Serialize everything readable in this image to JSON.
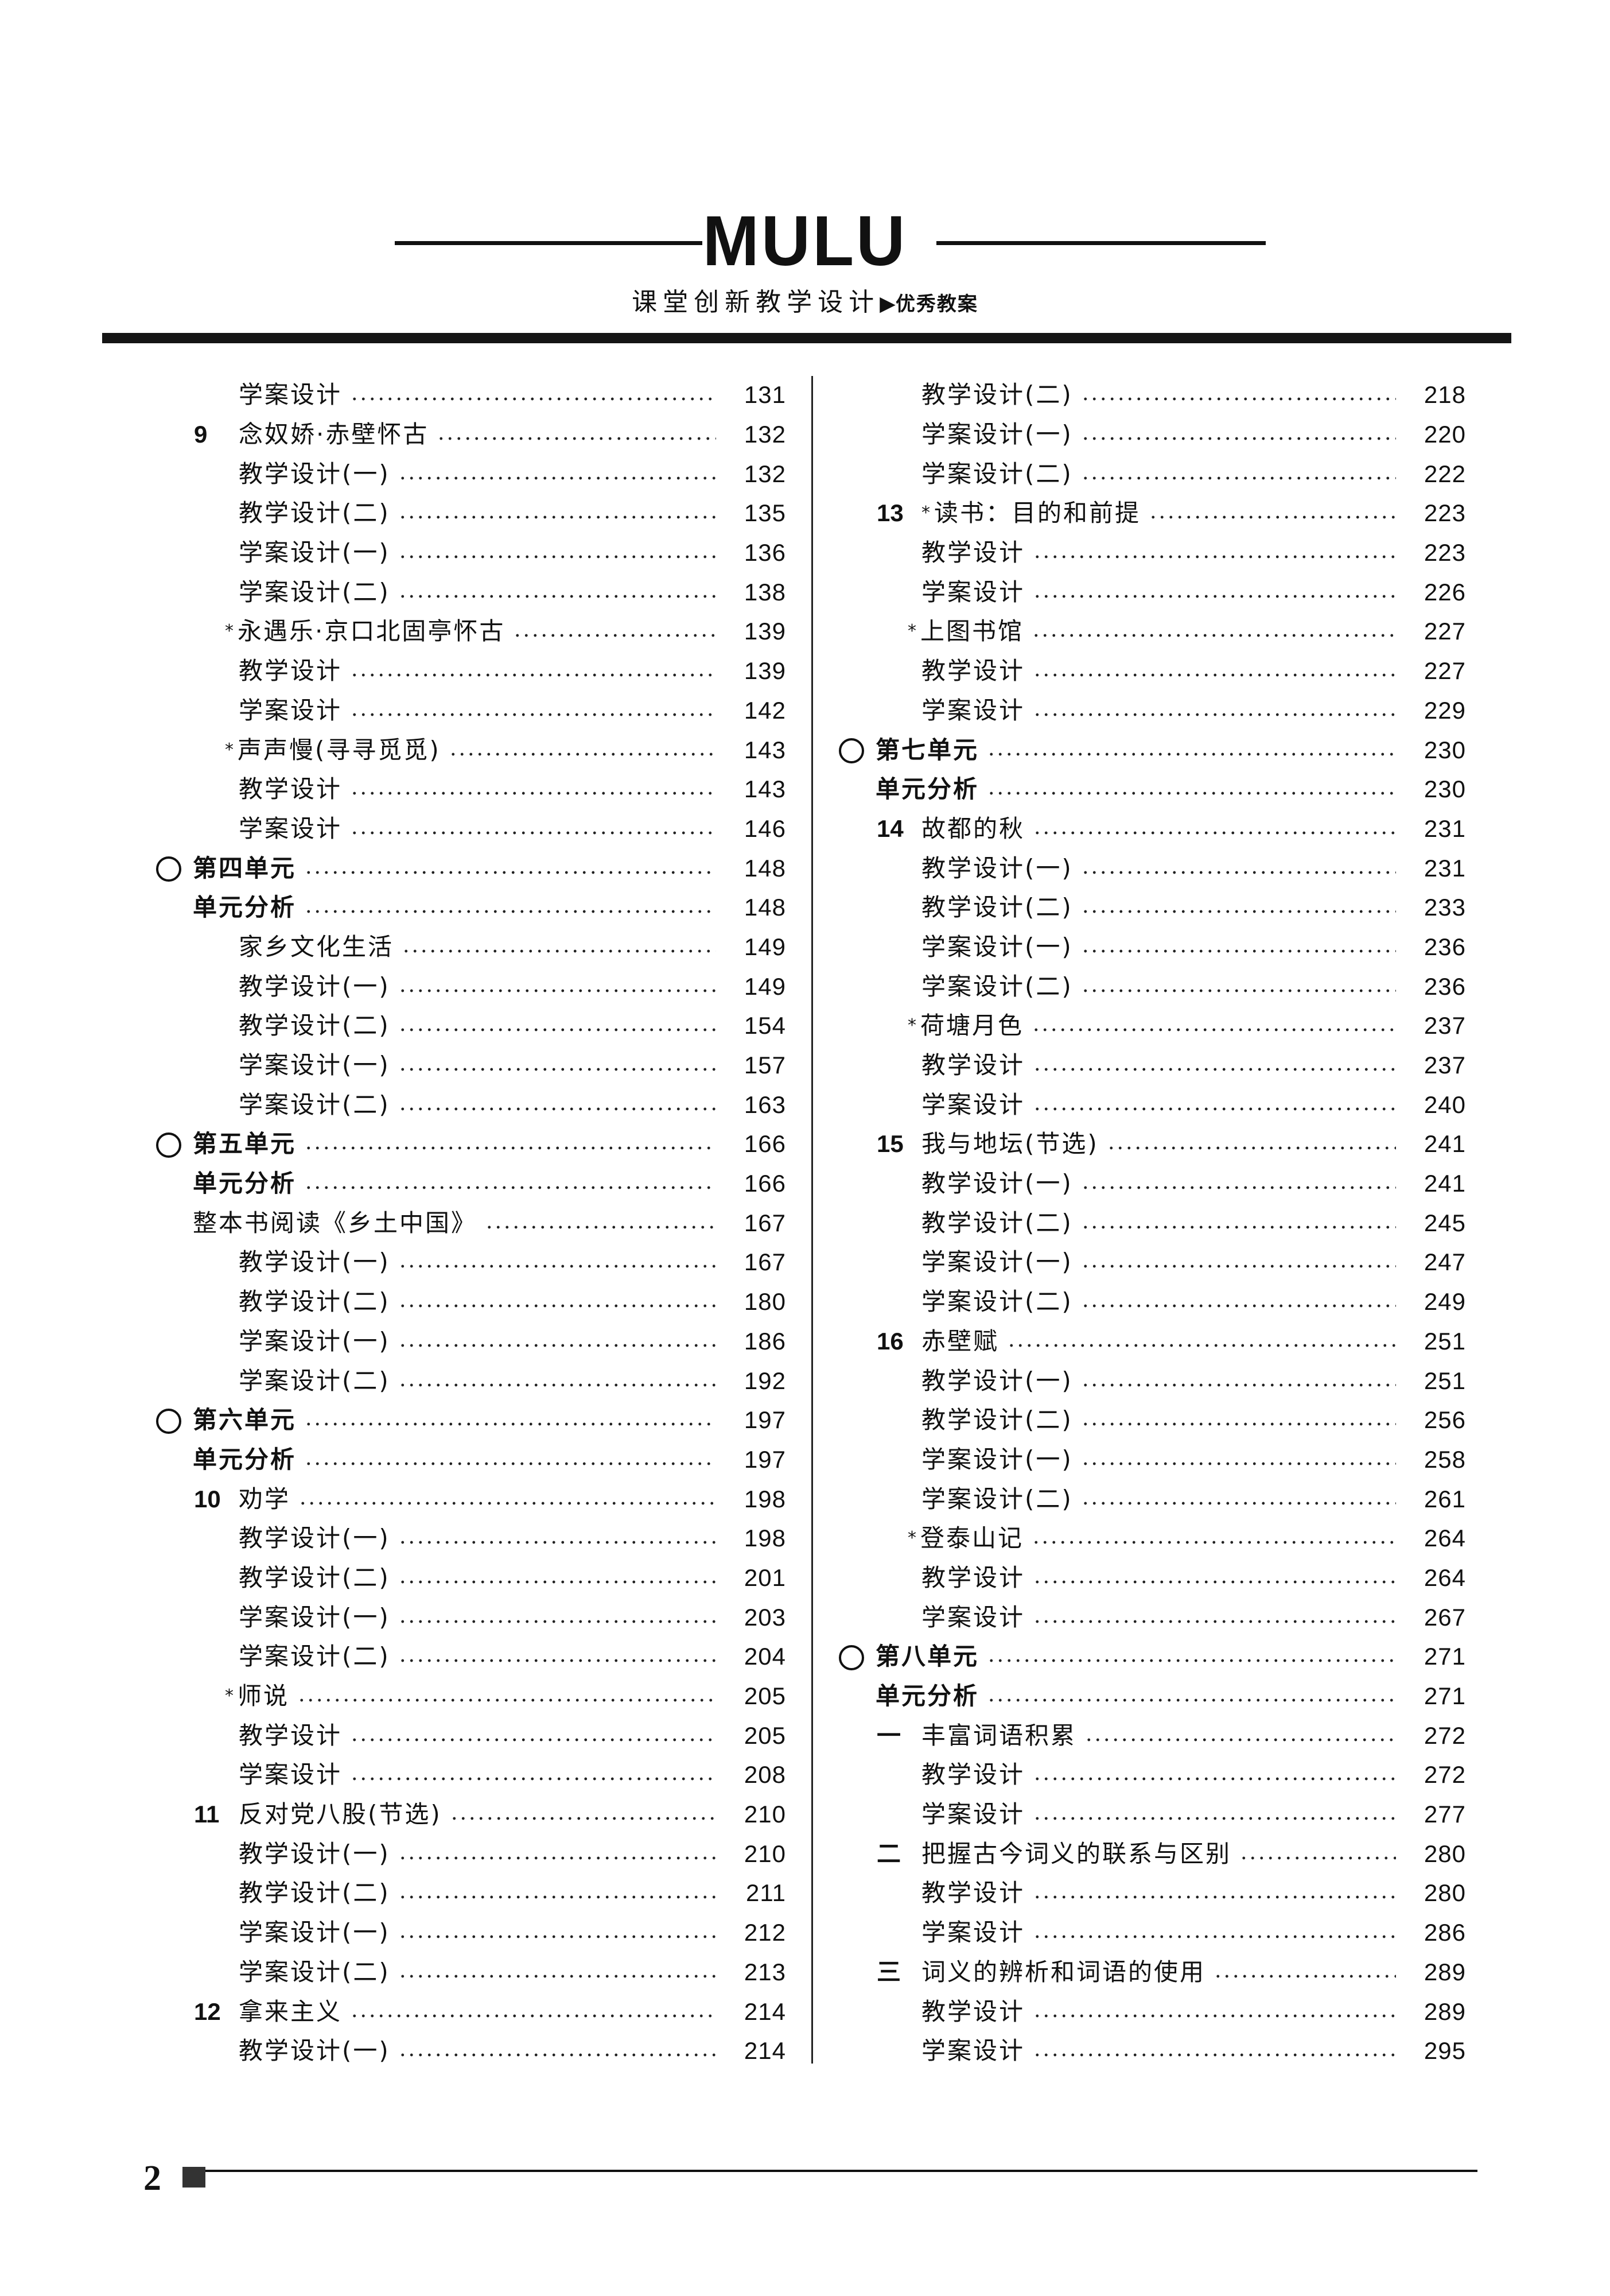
{
  "header": {
    "title": "MULU",
    "subtitle": "课堂创新教学设计",
    "subtitle_arrow": "▶",
    "subtitle_tag": "优秀教案"
  },
  "footer": {
    "page_number": "2"
  },
  "toc": {
    "left": [
      {
        "type": "sub",
        "title": "学案设计",
        "page": "131"
      },
      {
        "type": "lesson",
        "num": "9",
        "title": "念奴娇·赤壁怀古",
        "page": "132"
      },
      {
        "type": "sub",
        "title": "教学设计(一)",
        "page": "132"
      },
      {
        "type": "sub",
        "title": "教学设计(二)",
        "page": "135"
      },
      {
        "type": "sub",
        "title": "学案设计(一)",
        "page": "136"
      },
      {
        "type": "sub",
        "title": "学案设计(二)",
        "page": "138"
      },
      {
        "type": "extra",
        "star": "*",
        "title": "永遇乐·京口北固亭怀古",
        "page": "139"
      },
      {
        "type": "sub",
        "title": "教学设计",
        "page": "139"
      },
      {
        "type": "sub",
        "title": "学案设计",
        "page": "142"
      },
      {
        "type": "extra",
        "star": "*",
        "title": "声声慢(寻寻觅觅)",
        "page": "143"
      },
      {
        "type": "sub",
        "title": "教学设计",
        "page": "143"
      },
      {
        "type": "sub",
        "title": "学案设计",
        "page": "146"
      },
      {
        "type": "unit",
        "title": "第四单元",
        "page": "148"
      },
      {
        "type": "analysis",
        "title": "单元分析",
        "page": "148"
      },
      {
        "type": "sub",
        "title": "家乡文化生活",
        "page": "149"
      },
      {
        "type": "sub",
        "title": "教学设计(一)",
        "page": "149"
      },
      {
        "type": "sub",
        "title": "教学设计(二)",
        "page": "154"
      },
      {
        "type": "sub",
        "title": "学案设计(一)",
        "page": "157"
      },
      {
        "type": "sub",
        "title": "学案设计(二)",
        "page": "163"
      },
      {
        "type": "unit",
        "title": "第五单元",
        "page": "166"
      },
      {
        "type": "analysis",
        "title": "单元分析",
        "page": "166"
      },
      {
        "type": "section",
        "title": "整本书阅读《乡土中国》",
        "page": "167"
      },
      {
        "type": "sub",
        "title": "教学设计(一)",
        "page": "167"
      },
      {
        "type": "sub",
        "title": "教学设计(二)",
        "page": "180"
      },
      {
        "type": "sub",
        "title": "学案设计(一)",
        "page": "186"
      },
      {
        "type": "sub",
        "title": "学案设计(二)",
        "page": "192"
      },
      {
        "type": "unit",
        "title": "第六单元",
        "page": "197"
      },
      {
        "type": "analysis",
        "title": "单元分析",
        "page": "197"
      },
      {
        "type": "lesson",
        "num": "10",
        "title": "劝学",
        "page": "198"
      },
      {
        "type": "sub",
        "title": "教学设计(一)",
        "page": "198"
      },
      {
        "type": "sub",
        "title": "教学设计(二)",
        "page": "201"
      },
      {
        "type": "sub",
        "title": "学案设计(一)",
        "page": "203"
      },
      {
        "type": "sub",
        "title": "学案设计(二)",
        "page": "204"
      },
      {
        "type": "extra",
        "star": "*",
        "title": "师说",
        "page": "205"
      },
      {
        "type": "sub",
        "title": "教学设计",
        "page": "205"
      },
      {
        "type": "sub",
        "title": "学案设计",
        "page": "208"
      },
      {
        "type": "lesson",
        "num": "11",
        "title": "反对党八股(节选)",
        "page": "210"
      },
      {
        "type": "sub",
        "title": "教学设计(一)",
        "page": "210"
      },
      {
        "type": "sub",
        "title": "教学设计(二)",
        "page": "211"
      },
      {
        "type": "sub",
        "title": "学案设计(一)",
        "page": "212"
      },
      {
        "type": "sub",
        "title": "学案设计(二)",
        "page": "213"
      },
      {
        "type": "lesson",
        "num": "12",
        "title": "拿来主义",
        "page": "214"
      },
      {
        "type": "sub",
        "title": "教学设计(一)",
        "page": "214"
      }
    ],
    "right": [
      {
        "type": "sub",
        "title": "教学设计(二)",
        "page": "218"
      },
      {
        "type": "sub",
        "title": "学案设计(一)",
        "page": "220"
      },
      {
        "type": "sub",
        "title": "学案设计(二)",
        "page": "222"
      },
      {
        "type": "lesson",
        "num": "13",
        "star": "*",
        "title": "读书：目的和前提",
        "page": "223"
      },
      {
        "type": "sub",
        "title": "教学设计",
        "page": "223"
      },
      {
        "type": "sub",
        "title": "学案设计",
        "page": "226"
      },
      {
        "type": "extra",
        "star": "*",
        "title": "上图书馆",
        "page": "227"
      },
      {
        "type": "sub",
        "title": "教学设计",
        "page": "227"
      },
      {
        "type": "sub",
        "title": "学案设计",
        "page": "229"
      },
      {
        "type": "unit",
        "title": "第七单元",
        "page": "230"
      },
      {
        "type": "analysis",
        "title": "单元分析",
        "page": "230"
      },
      {
        "type": "lesson",
        "num": "14",
        "title": "故都的秋",
        "page": "231"
      },
      {
        "type": "sub",
        "title": "教学设计(一)",
        "page": "231"
      },
      {
        "type": "sub",
        "title": "教学设计(二)",
        "page": "233"
      },
      {
        "type": "sub",
        "title": "学案设计(一)",
        "page": "236"
      },
      {
        "type": "sub",
        "title": "学案设计(二)",
        "page": "236"
      },
      {
        "type": "extra",
        "star": "*",
        "title": "荷塘月色",
        "page": "237"
      },
      {
        "type": "sub",
        "title": "教学设计",
        "page": "237"
      },
      {
        "type": "sub",
        "title": "学案设计",
        "page": "240"
      },
      {
        "type": "lesson",
        "num": "15",
        "title": "我与地坛(节选)",
        "page": "241"
      },
      {
        "type": "sub",
        "title": "教学设计(一)",
        "page": "241"
      },
      {
        "type": "sub",
        "title": "教学设计(二)",
        "page": "245"
      },
      {
        "type": "sub",
        "title": "学案设计(一)",
        "page": "247"
      },
      {
        "type": "sub",
        "title": "学案设计(二)",
        "page": "249"
      },
      {
        "type": "lesson",
        "num": "16",
        "title": "赤壁赋",
        "page": "251"
      },
      {
        "type": "sub",
        "title": "教学设计(一)",
        "page": "251"
      },
      {
        "type": "sub",
        "title": "教学设计(二)",
        "page": "256"
      },
      {
        "type": "sub",
        "title": "学案设计(一)",
        "page": "258"
      },
      {
        "type": "sub",
        "title": "学案设计(二)",
        "page": "261"
      },
      {
        "type": "extra",
        "star": "*",
        "title": "登泰山记",
        "page": "264"
      },
      {
        "type": "sub",
        "title": "教学设计",
        "page": "264"
      },
      {
        "type": "sub",
        "title": "学案设计",
        "page": "267"
      },
      {
        "type": "unit",
        "title": "第八单元",
        "page": "271"
      },
      {
        "type": "analysis",
        "title": "单元分析",
        "page": "271"
      },
      {
        "type": "lesson",
        "num": "一",
        "title": "丰富词语积累",
        "page": "272"
      },
      {
        "type": "sub",
        "title": "教学设计",
        "page": "272"
      },
      {
        "type": "sub",
        "title": "学案设计",
        "page": "277"
      },
      {
        "type": "lesson",
        "num": "二",
        "title": "把握古今词义的联系与区别",
        "page": "280"
      },
      {
        "type": "sub",
        "title": "教学设计",
        "page": "280"
      },
      {
        "type": "sub",
        "title": "学案设计",
        "page": "286"
      },
      {
        "type": "lesson",
        "num": "三",
        "title": "词义的辨析和词语的使用",
        "page": "289"
      },
      {
        "type": "sub",
        "title": "教学设计",
        "page": "289"
      },
      {
        "type": "sub",
        "title": "学案设计",
        "page": "295"
      }
    ]
  }
}
